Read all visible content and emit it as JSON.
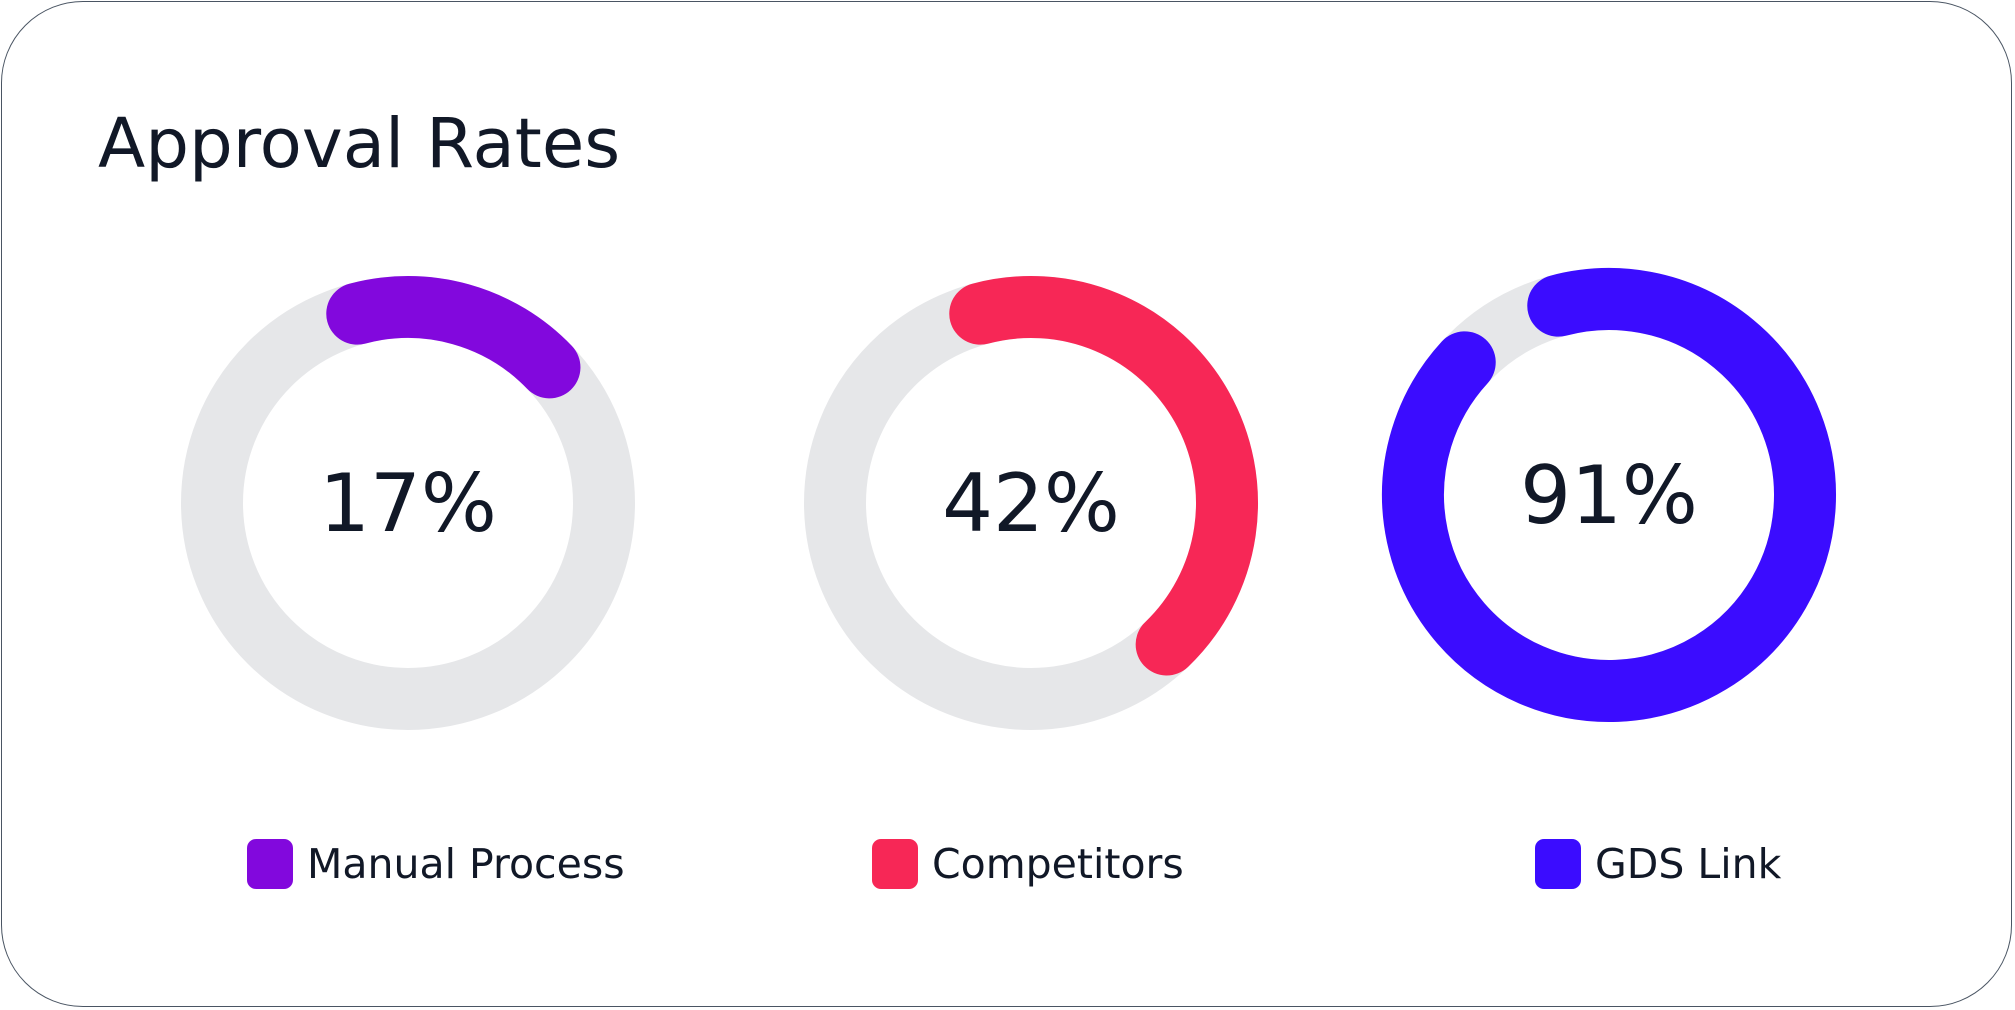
{
  "card": {
    "title": "Approval Rates"
  },
  "chart_data": {
    "type": "donut",
    "title": "Approval Rates",
    "unit": "%",
    "track_color": "#e6e7e9",
    "series": [
      {
        "name": "Manual Process",
        "value": 17,
        "label": "17%",
        "color": "#8208dd"
      },
      {
        "name": "Competitors",
        "value": 42,
        "label": "42%",
        "color": "#f72756"
      },
      {
        "name": "GDS Link",
        "value": 91,
        "label": "91%",
        "color": "#3b0cff"
      }
    ]
  }
}
